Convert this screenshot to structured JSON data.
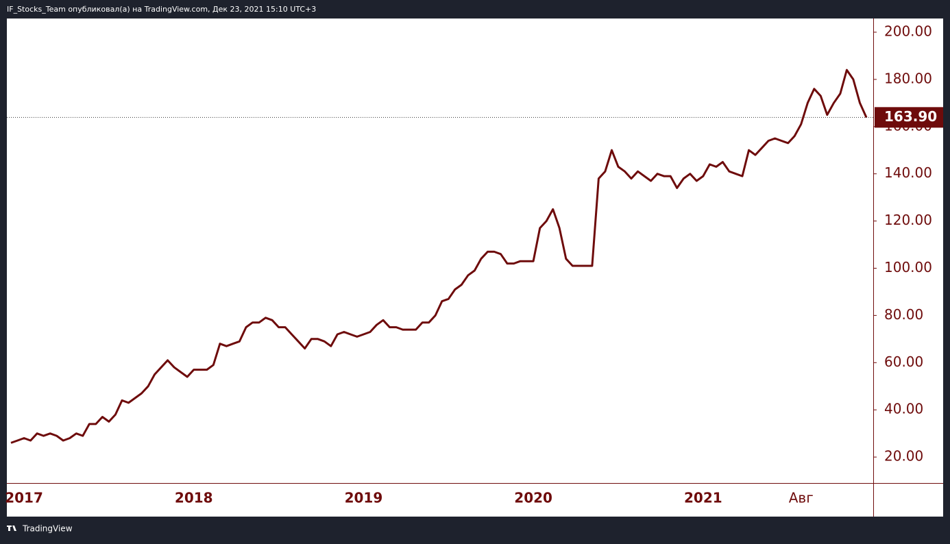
{
  "header": "IF_Stocks_Team опубликовал(а) на TradingView.com, Дек 23, 2021 15:10 UTC+3",
  "footer": "TradingView",
  "chart_data": {
    "type": "line",
    "color": "#6e0b0b",
    "categories": [
      null,
      null,
      "2017",
      null,
      null,
      null,
      null,
      null,
      null,
      null,
      null,
      null,
      null,
      null,
      null,
      null,
      null,
      null,
      null,
      null,
      null,
      null,
      null,
      null,
      null,
      null,
      null,
      null,
      "2018",
      null,
      null,
      null,
      null,
      null,
      null,
      null,
      null,
      null,
      null,
      null,
      null,
      null,
      null,
      null,
      null,
      null,
      null,
      null,
      null,
      null,
      null,
      null,
      null,
      null,
      "2019",
      null,
      null,
      null,
      null,
      null,
      null,
      null,
      null,
      null,
      null,
      null,
      null,
      null,
      null,
      null,
      null,
      null,
      null,
      null,
      null,
      null,
      null,
      null,
      null,
      null,
      "2020",
      null,
      null,
      null,
      null,
      null,
      null,
      null,
      null,
      null,
      null,
      null,
      null,
      null,
      null,
      null,
      null,
      null,
      null,
      null,
      null,
      null,
      null,
      null,
      null,
      null,
      "2021",
      null,
      null,
      null,
      null,
      null,
      null,
      null,
      null,
      null,
      null,
      null,
      null,
      null,
      null,
      "Авг",
      null,
      null,
      null,
      null,
      null,
      null,
      null,
      null,
      null,
      null
    ],
    "values": [
      26,
      27,
      28,
      27,
      30,
      29,
      30,
      29,
      27,
      28,
      30,
      29,
      34,
      34,
      37,
      35,
      38,
      44,
      43,
      45,
      47,
      50,
      55,
      58,
      61,
      58,
      56,
      54,
      57,
      57,
      57,
      59,
      68,
      67,
      68,
      69,
      75,
      77,
      77,
      79,
      78,
      75,
      75,
      72,
      69,
      66,
      70,
      70,
      69,
      67,
      72,
      73,
      72,
      71,
      72,
      73,
      76,
      78,
      75,
      75,
      74,
      74,
      74,
      77,
      77,
      80,
      86,
      87,
      91,
      93,
      97,
      99,
      104,
      107,
      107,
      106,
      102,
      102,
      103,
      103,
      103,
      117,
      120,
      125,
      117,
      104,
      101,
      101,
      101,
      101,
      138,
      141,
      150,
      143,
      141,
      138,
      141,
      139,
      137,
      140,
      139,
      139,
      134,
      138,
      140,
      137,
      139,
      144,
      143,
      145,
      141,
      140,
      139,
      150,
      148,
      151,
      154,
      155,
      154,
      153,
      156,
      161,
      170,
      176,
      173,
      165,
      170,
      174,
      184,
      180,
      170,
      163.9
    ],
    "last_price": {
      "value": 163.9,
      "label": "163.90"
    },
    "ylim": [
      9,
      205.8
    ],
    "yticks": [
      {
        "value": 20,
        "label": "20.00"
      },
      {
        "value": 40,
        "label": "40.00"
      },
      {
        "value": 60,
        "label": "60.00"
      },
      {
        "value": 80,
        "label": "80.00"
      },
      {
        "value": 100,
        "label": "100.00"
      },
      {
        "value": 120,
        "label": "120.00"
      },
      {
        "value": 140,
        "label": "140.00"
      },
      {
        "value": 160,
        "label": "160.00"
      },
      {
        "value": 180,
        "label": "180.00"
      },
      {
        "value": 200,
        "label": "200.00"
      }
    ]
  }
}
